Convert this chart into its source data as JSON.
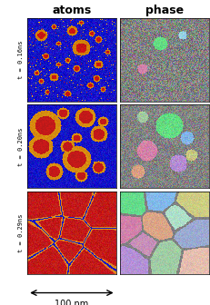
{
  "title_atoms": "atoms",
  "title_phase": "phase",
  "time_labels": [
    "t = 0.16ns",
    "t = 0.20ns",
    "t = 0.29ns"
  ],
  "scale_bar_label": "100 nm",
  "background_color": "#ffffff",
  "fig_width": 2.32,
  "fig_height": 3.36,
  "dpi": 100
}
